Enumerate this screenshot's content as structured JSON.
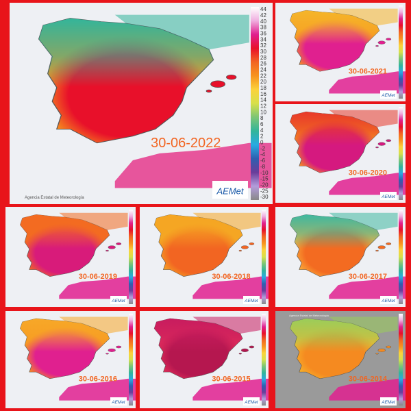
{
  "scale_labels": [
    44,
    42,
    40,
    38,
    36,
    34,
    32,
    30,
    28,
    26,
    24,
    22,
    20,
    18,
    16,
    14,
    12,
    10,
    8,
    6,
    4,
    2,
    0,
    -2,
    -4,
    -6,
    -8,
    -10,
    -15,
    -20,
    -25,
    -30
  ],
  "source": "Agencia Estatal de Meteorología",
  "logo": "AEMet",
  "panels": [
    {
      "date": "30-06-2022"
    },
    {
      "date": "30-06-2021"
    },
    {
      "date": "30-06-2020"
    },
    {
      "date": "30-06-2019"
    },
    {
      "date": "30-06-2018"
    },
    {
      "date": "30-06-2017"
    },
    {
      "date": "30-06-2016"
    },
    {
      "date": "30-06-2015"
    },
    {
      "date": "30-06-2014"
    }
  ]
}
